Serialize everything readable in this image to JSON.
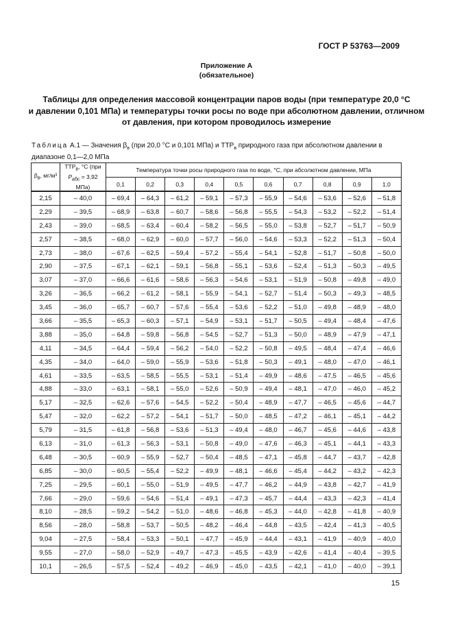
{
  "standard": "ГОСТ Р 53763—2009",
  "appendix": {
    "title": "Приложение А",
    "status": "(обязательное)"
  },
  "heading": [
    "Таблицы для определения массовой концентрации паров воды (при температуре 20,0 °С",
    "и давлении 0,101 МПа) и температуры точки росы по воде при абсолютном давлении, отличном",
    "от давления, при котором проводилось измерение"
  ],
  "caption": {
    "label": "Таблица",
    "text": "А.1 — Значения β",
    "sub1": "в",
    "text2": " (при 20,0 °С и 0,101 МПа) и ТТР",
    "sub2": "в",
    "text3": " природного газа при абсолютном давлении в диапазоне 0,1—2,0 МПа"
  },
  "table": {
    "col0_header": "β",
    "col0_sub": "в",
    "col0_unit": ", мг/м³",
    "col1_header": "ТТР",
    "col1_sub": "в",
    "col1_unit": ", °С (при",
    "col1_p": "P",
    "col1_psub": "абс",
    "col1_pval": " = 3,92 МПа)",
    "group_header": "Температура точки росы природного газа по воде, °С, при абсолютном давлении, МПа",
    "pressures": [
      "0,1",
      "0,2",
      "0,3",
      "0,4",
      "0,5",
      "0,6",
      "0,7",
      "0,8",
      "0,9",
      "1,0"
    ],
    "rows": [
      [
        "2,15",
        "– 40,0",
        "– 69,4",
        "– 64,3",
        "– 61,2",
        "– 59,1",
        "– 57,3",
        "– 55,9",
        "– 54,6",
        "– 53,6",
        "– 52,6",
        "– 51,8"
      ],
      [
        "2,29",
        "– 39,5",
        "– 68,9",
        "– 63,8",
        "– 60,7",
        "– 58,6",
        "– 56,8",
        "– 55,5",
        "– 54,3",
        "– 53,2",
        "– 52,2",
        "– 51,4"
      ],
      [
        "2,43",
        "– 39,0",
        "– 68,5",
        "– 63,4",
        "– 60,4",
        "– 58,2",
        "– 56,5",
        "– 55,0",
        "– 53,8",
        "– 52,7",
        "– 51,7",
        "– 50,9"
      ],
      [
        "2,57",
        "– 38,5",
        "– 68,0",
        "– 62,9",
        "– 60,0",
        "– 57,7",
        "– 56,0",
        "– 54,6",
        "– 53,3",
        "– 52,2",
        "– 51,3",
        "– 50,4"
      ],
      [
        "2,73",
        "– 38,0",
        "– 67,6",
        "– 62,5",
        "– 59,4",
        "– 57,2",
        "– 55,4",
        "– 54,1",
        "– 52,8",
        "– 51,7",
        "– 50,8",
        "– 50,0"
      ],
      [
        "2,90",
        "– 37,5",
        "– 67,1",
        "– 62,1",
        "– 59,1",
        "– 56,8",
        "– 55,1",
        "– 53,6",
        "– 52,4",
        "– 51,3",
        "– 50,3",
        "– 49,5"
      ],
      [
        "3,07",
        "– 37,0",
        "– 66,6",
        "– 61,6",
        "– 58,6",
        "– 56,3",
        "– 54,6",
        "– 53,1",
        "– 51,9",
        "– 50,8",
        "– 49,8",
        "– 49,0"
      ],
      [
        "3,26",
        "– 36,5",
        "– 66,2",
        "– 61,2",
        "– 58,1",
        "– 55,9",
        "– 54,1",
        "– 52,7",
        "– 51,4",
        "– 50,3",
        "– 49,3",
        "– 48,5"
      ],
      [
        "3,45",
        "– 36,0",
        "– 65,7",
        "– 60,7",
        "– 57,6",
        "– 55,4",
        "– 53,6",
        "– 52,2",
        "– 51,0",
        "– 49,8",
        "– 48,9",
        "– 48,0"
      ],
      [
        "3,66",
        "– 35,5",
        "– 65,3",
        "– 60,3",
        "– 57,1",
        "– 54,9",
        "– 53,1",
        "– 51,7",
        "– 50,5",
        "– 49,4",
        "– 48,4",
        "– 47,6"
      ],
      [
        "3,88",
        "– 35,0",
        "– 64,8",
        "– 59,8",
        "– 56,8",
        "– 54,5",
        "– 52,7",
        "– 51,3",
        "– 50,0",
        "– 48,9",
        "– 47,9",
        "– 47,1"
      ],
      [
        "4,11",
        "– 34,5",
        "– 64,4",
        "– 59,4",
        "– 56,2",
        "– 54,0",
        "– 52,2",
        "– 50,8",
        "– 49,5",
        "– 48,4",
        "– 47,4",
        "– 46,6"
      ],
      [
        "4,35",
        "– 34,0",
        "– 64,0",
        "– 59,0",
        "– 55,9",
        "– 53,6",
        "– 51,8",
        "– 50,3",
        "– 49,1",
        "– 48,0",
        "– 47,0",
        "– 46,1"
      ],
      [
        "4,61",
        "– 33,5",
        "– 63,5",
        "– 58,5",
        "– 55,5",
        "– 53,1",
        "– 51,4",
        "– 49,9",
        "– 48,6",
        "– 47,5",
        "– 46,5",
        "– 45,6"
      ],
      [
        "4,88",
        "– 33,0",
        "– 63,1",
        "– 58,1",
        "– 55,0",
        "– 52,6",
        "– 50,9",
        "– 49,4",
        "– 48,1",
        "– 47,0",
        "– 46,0",
        "– 45,2"
      ],
      [
        "5,17",
        "– 32,5",
        "– 62,6",
        "– 57,6",
        "– 54,5",
        "– 52,2",
        "– 50,4",
        "– 48,9",
        "– 47,7",
        "– 46,5",
        "– 45,6",
        "– 44,7"
      ],
      [
        "5,47",
        "– 32,0",
        "– 62,2",
        "– 57,2",
        "– 54,1",
        "– 51,7",
        "– 50,0",
        "– 48,5",
        "– 47,2",
        "– 46,1",
        "– 45,1",
        "– 44,2"
      ],
      [
        "5,79",
        "– 31,5",
        "– 61,8",
        "– 56,8",
        "– 53,6",
        "– 51,3",
        "– 49,4",
        "– 48,0",
        "– 46,7",
        "– 45,6",
        "– 44,6",
        "– 43,8"
      ],
      [
        "6,13",
        "– 31,0",
        "– 61,3",
        "– 56,3",
        "– 53,1",
        "– 50,8",
        "– 49,0",
        "– 47,6",
        "– 46,3",
        "– 45,1",
        "– 44,1",
        "– 43,3"
      ],
      [
        "6,48",
        "– 30,5",
        "– 60,9",
        "– 55,9",
        "– 52,7",
        "– 50,4",
        "– 48,5",
        "– 47,1",
        "– 45,8",
        "– 44,7",
        "– 43,7",
        "– 42,8"
      ],
      [
        "6,85",
        "– 30,0",
        "– 60,5",
        "– 55,4",
        "– 52,2",
        "– 49,9",
        "– 48,1",
        "– 46,6",
        "– 45,4",
        "– 44,2",
        "– 43,2",
        "– 42,3"
      ],
      [
        "7,25",
        "– 29,5",
        "– 60,1",
        "– 55,0",
        "– 51,9",
        "– 49,5",
        "– 47,7",
        "– 46,2",
        "– 44,9",
        "– 43,8",
        "– 42,7",
        "– 41,9"
      ],
      [
        "7,66",
        "– 29,0",
        "– 59,6",
        "– 54,6",
        "– 51,4",
        "– 49,1",
        "– 47,3",
        "– 45,7",
        "– 44,4",
        "– 43,3",
        "– 42,3",
        "– 41,4"
      ],
      [
        "8,10",
        "– 28,5",
        "– 59,2",
        "– 54,2",
        "– 51,0",
        "– 48,6",
        "– 46,8",
        "– 45,3",
        "– 44,0",
        "– 42,8",
        "– 41,8",
        "– 40,9"
      ],
      [
        "8,56",
        "– 28,0",
        "– 58,8",
        "– 53,7",
        "– 50,5",
        "– 48,2",
        "– 46,4",
        "– 44,8",
        "– 43,5",
        "– 42,4",
        "– 41,3",
        "– 40,5"
      ],
      [
        "9,04",
        "– 27,5",
        "– 58,4",
        "– 53,3",
        "– 50,1",
        "– 47,7",
        "– 45,9",
        "– 44,4",
        "– 43,1",
        "– 41,9",
        "– 40,9",
        "– 40,0"
      ],
      [
        "9,55",
        "– 27,0",
        "– 58,0",
        "– 52,9",
        "– 49,7",
        "– 47,3",
        "– 45,5",
        "– 43,9",
        "– 42,6",
        "– 41,4",
        "– 40,4",
        "– 39,5"
      ],
      [
        "10,1",
        "– 26,5",
        "– 57,5",
        "– 52,4",
        "– 49,2",
        "– 46,9",
        "– 45,0",
        "– 43,5",
        "– 42,1",
        "– 41,0",
        "– 40,0",
        "– 39,1"
      ]
    ]
  },
  "page_number": "15"
}
